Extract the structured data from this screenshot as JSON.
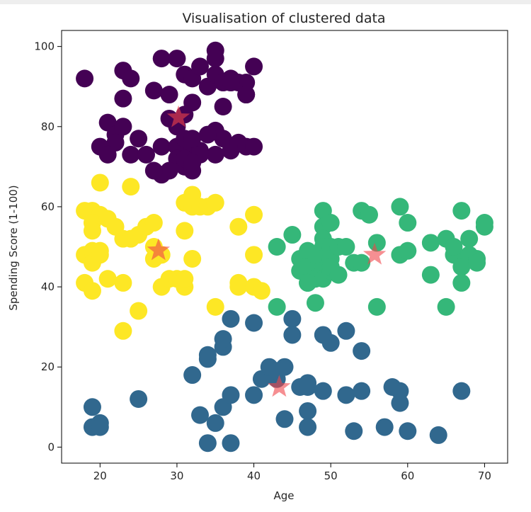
{
  "chart_data": {
    "type": "scatter",
    "title": "Visualisation of clustered data",
    "xlabel": "Age",
    "ylabel": "Spending Score (1-100)",
    "xlim": [
      15,
      73
    ],
    "ylim": [
      -4,
      104
    ],
    "xticks": [
      20,
      30,
      40,
      50,
      60,
      70
    ],
    "yticks": [
      0,
      20,
      40,
      60,
      80,
      100
    ],
    "grid": false,
    "legend": "none",
    "marker_color_centroid": "#f0444a",
    "series": [
      {
        "color": "#440154",
        "points": [
          [
            18,
            92
          ],
          [
            23,
            94
          ],
          [
            24,
            92
          ],
          [
            23,
            87
          ],
          [
            27,
            89
          ],
          [
            28,
            97
          ],
          [
            30,
            97
          ],
          [
            29,
            88
          ],
          [
            31,
            93
          ],
          [
            32,
            92
          ],
          [
            33,
            95
          ],
          [
            34,
            90
          ],
          [
            35,
            93
          ],
          [
            35,
            99
          ],
          [
            35,
            97
          ],
          [
            36,
            91
          ],
          [
            37,
            92
          ],
          [
            38,
            91
          ],
          [
            39,
            91
          ],
          [
            40,
            95
          ],
          [
            39,
            88
          ],
          [
            36,
            85
          ],
          [
            32,
            86
          ],
          [
            31,
            83
          ],
          [
            29,
            82
          ],
          [
            30,
            80
          ],
          [
            21,
            81
          ],
          [
            22,
            78
          ],
          [
            23,
            80
          ],
          [
            25,
            77
          ],
          [
            22,
            76
          ],
          [
            20,
            75
          ],
          [
            21,
            73
          ],
          [
            24,
            73
          ],
          [
            26,
            73
          ],
          [
            28,
            75
          ],
          [
            30,
            75
          ],
          [
            31,
            77
          ],
          [
            32,
            74
          ],
          [
            33,
            74
          ],
          [
            30,
            72
          ],
          [
            31,
            70
          ],
          [
            32,
            69
          ],
          [
            29,
            69
          ],
          [
            28,
            68
          ],
          [
            27,
            69
          ],
          [
            31,
            72
          ],
          [
            32,
            77
          ],
          [
            35,
            73
          ],
          [
            36,
            77
          ],
          [
            37,
            74
          ],
          [
            38,
            76
          ],
          [
            39,
            75
          ],
          [
            40,
            75
          ],
          [
            35,
            79
          ],
          [
            34,
            78
          ],
          [
            33,
            73
          ],
          [
            32,
            71
          ],
          [
            39,
            88
          ],
          [
            37,
            91
          ]
        ]
      },
      {
        "color": "#fde725",
        "points": [
          [
            18,
            59
          ],
          [
            19,
            59
          ],
          [
            20,
            58
          ],
          [
            19,
            56
          ],
          [
            19,
            54
          ],
          [
            21,
            57
          ],
          [
            22,
            55
          ],
          [
            23,
            52
          ],
          [
            24,
            52
          ],
          [
            25,
            53
          ],
          [
            26,
            55
          ],
          [
            27,
            56
          ],
          [
            24,
            65
          ],
          [
            20,
            66
          ],
          [
            18,
            48
          ],
          [
            19,
            49
          ],
          [
            19,
            46
          ],
          [
            20,
            49
          ],
          [
            20,
            48
          ],
          [
            18,
            41
          ],
          [
            19,
            39
          ],
          [
            21,
            42
          ],
          [
            23,
            41
          ],
          [
            27,
            50
          ],
          [
            27,
            47
          ],
          [
            28,
            48
          ],
          [
            28,
            40
          ],
          [
            29,
            42
          ],
          [
            30,
            42
          ],
          [
            31,
            40
          ],
          [
            31,
            42
          ],
          [
            32,
            47
          ],
          [
            31,
            54
          ],
          [
            31,
            61
          ],
          [
            32,
            63
          ],
          [
            32,
            60
          ],
          [
            33,
            60
          ],
          [
            34,
            60
          ],
          [
            35,
            61
          ],
          [
            38,
            55
          ],
          [
            40,
            58
          ],
          [
            40,
            48
          ],
          [
            38,
            41
          ],
          [
            38,
            40
          ],
          [
            40,
            40
          ],
          [
            41,
            39
          ],
          [
            35,
            35
          ],
          [
            25,
            34
          ],
          [
            23,
            29
          ]
        ]
      },
      {
        "color": "#35b779",
        "points": [
          [
            43,
            50
          ],
          [
            45,
            53
          ],
          [
            46,
            44
          ],
          [
            46,
            47
          ],
          [
            47,
            49
          ],
          [
            47,
            41
          ],
          [
            47,
            45
          ],
          [
            48,
            44
          ],
          [
            48,
            46
          ],
          [
            48,
            48
          ],
          [
            48,
            42
          ],
          [
            49,
            59
          ],
          [
            49,
            55
          ],
          [
            49,
            52
          ],
          [
            49,
            50
          ],
          [
            49,
            47
          ],
          [
            49,
            44
          ],
          [
            49,
            42
          ],
          [
            50,
            56
          ],
          [
            50,
            50
          ],
          [
            50,
            47
          ],
          [
            50,
            44
          ],
          [
            50,
            45
          ],
          [
            51,
            50
          ],
          [
            51,
            43
          ],
          [
            52,
            50
          ],
          [
            53,
            46
          ],
          [
            54,
            46
          ],
          [
            54,
            59
          ],
          [
            55,
            58
          ],
          [
            56,
            51
          ],
          [
            59,
            60
          ],
          [
            60,
            56
          ],
          [
            59,
            48
          ],
          [
            60,
            49
          ],
          [
            63,
            51
          ],
          [
            63,
            43
          ],
          [
            65,
            52
          ],
          [
            66,
            48
          ],
          [
            67,
            59
          ],
          [
            66,
            50
          ],
          [
            67,
            45
          ],
          [
            67,
            41
          ],
          [
            68,
            52
          ],
          [
            68,
            48
          ],
          [
            69,
            47
          ],
          [
            69,
            46
          ],
          [
            70,
            56
          ],
          [
            70,
            55
          ],
          [
            43,
            35
          ],
          [
            48,
            36
          ],
          [
            56,
            35
          ],
          [
            65,
            35
          ],
          [
            47,
            41
          ]
        ]
      },
      {
        "color": "#31688e",
        "points": [
          [
            19,
            10
          ],
          [
            19,
            5
          ],
          [
            20,
            6
          ],
          [
            20,
            5
          ],
          [
            25,
            12
          ],
          [
            32,
            18
          ],
          [
            33,
            8
          ],
          [
            34,
            22
          ],
          [
            34,
            23
          ],
          [
            34,
            1
          ],
          [
            35,
            6
          ],
          [
            36,
            10
          ],
          [
            36,
            25
          ],
          [
            36,
            27
          ],
          [
            37,
            13
          ],
          [
            37,
            32
          ],
          [
            37,
            1
          ],
          [
            40,
            31
          ],
          [
            40,
            13
          ],
          [
            41,
            17
          ],
          [
            42,
            20
          ],
          [
            43,
            17
          ],
          [
            43,
            19
          ],
          [
            44,
            20
          ],
          [
            44,
            7
          ],
          [
            45,
            32
          ],
          [
            45,
            28
          ],
          [
            46,
            15
          ],
          [
            47,
            15
          ],
          [
            47,
            16
          ],
          [
            47,
            9
          ],
          [
            47,
            5
          ],
          [
            49,
            28
          ],
          [
            49,
            14
          ],
          [
            50,
            26
          ],
          [
            52,
            29
          ],
          [
            52,
            13
          ],
          [
            53,
            4
          ],
          [
            54,
            24
          ],
          [
            54,
            14
          ],
          [
            57,
            5
          ],
          [
            58,
            15
          ],
          [
            59,
            14
          ],
          [
            59,
            11
          ],
          [
            60,
            4
          ],
          [
            64,
            3
          ],
          [
            67,
            14
          ]
        ]
      }
    ],
    "centroids": [
      [
        30.2,
        82.3
      ],
      [
        27.6,
        49.1
      ],
      [
        55.7,
        48.0
      ],
      [
        43.3,
        15.0
      ]
    ]
  }
}
